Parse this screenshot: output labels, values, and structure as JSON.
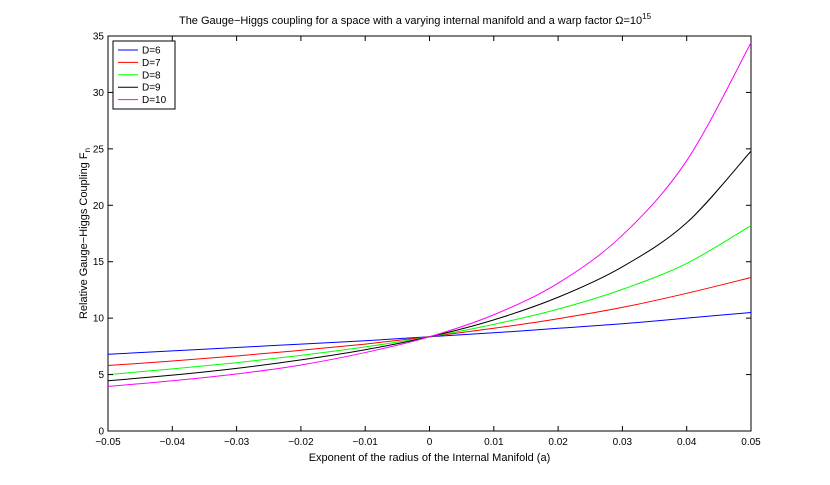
{
  "chart_data": {
    "type": "line",
    "title": "The Gauge−Higgs coupling for a space with a varying internal manifold and a warp factor Ω=10",
    "title_superscript": "15",
    "xlabel": "Exponent of the radius of the Internal Manifold (a)",
    "ylabel": "Relative Gauge−Higgs Coupling F",
    "ylabel_subscript": "n",
    "xlim": [
      -0.05,
      0.05
    ],
    "ylim": [
      0,
      35
    ],
    "x_ticks": [
      -0.05,
      -0.04,
      -0.03,
      -0.02,
      -0.01,
      0,
      0.01,
      0.02,
      0.03,
      0.04,
      0.05
    ],
    "x_tick_labels": [
      "−0.05",
      "−0.04",
      "−0.03",
      "−0.02",
      "−0.01",
      "0",
      "0.01",
      "0.02",
      "0.03",
      "0.04",
      "0.05"
    ],
    "y_ticks": [
      0,
      5,
      10,
      15,
      20,
      25,
      30,
      35
    ],
    "y_tick_labels": [
      "0",
      "5",
      "10",
      "15",
      "20",
      "25",
      "30",
      "35"
    ],
    "grid": false,
    "legend_position": "top-left",
    "x": [
      -0.05,
      -0.04,
      -0.03,
      -0.02,
      -0.01,
      0,
      0.01,
      0.02,
      0.03,
      0.04,
      0.05
    ],
    "series": [
      {
        "name": "D=6",
        "color": "#0000ff",
        "values": [
          6.8,
          7.1,
          7.4,
          7.7,
          8.0,
          8.35,
          8.7,
          9.1,
          9.5,
          10.0,
          10.5
        ]
      },
      {
        "name": "D=7",
        "color": "#ff0000",
        "values": [
          5.8,
          6.2,
          6.65,
          7.15,
          7.7,
          8.35,
          9.1,
          9.95,
          10.95,
          12.2,
          13.6
        ]
      },
      {
        "name": "D=8",
        "color": "#00ff00",
        "values": [
          5.0,
          5.5,
          6.05,
          6.7,
          7.45,
          8.35,
          9.45,
          10.8,
          12.55,
          14.85,
          18.2
        ]
      },
      {
        "name": "D=9",
        "color": "#000000",
        "values": [
          4.45,
          4.95,
          5.55,
          6.3,
          7.2,
          8.35,
          9.85,
          11.85,
          14.55,
          18.45,
          24.8
        ]
      },
      {
        "name": "D=10",
        "color": "#ff00ff",
        "values": [
          3.95,
          4.45,
          5.05,
          5.85,
          6.95,
          8.35,
          10.3,
          13.1,
          17.35,
          23.95,
          34.4
        ]
      }
    ]
  }
}
